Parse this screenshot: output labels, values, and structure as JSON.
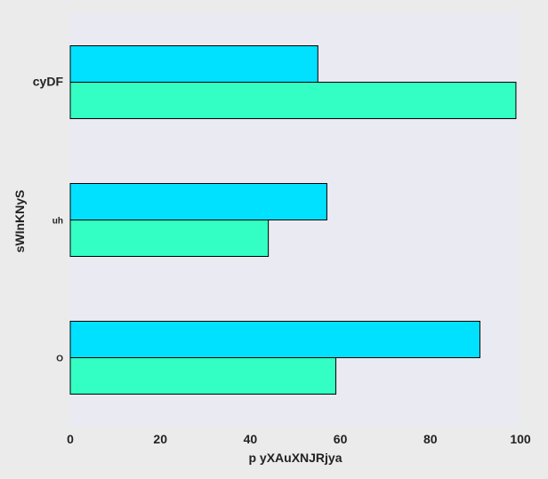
{
  "chart_data": {
    "type": "bar",
    "orientation": "horizontal",
    "title": "",
    "xlabel": "p yXAuXNJRjya",
    "ylabel": "sWInKNyS",
    "categories": [
      "cyDF",
      "uh",
      "O"
    ],
    "series": [
      {
        "color": "#00e0ff",
        "values": [
          55,
          57,
          91
        ]
      },
      {
        "color": "#33ffc4",
        "values": [
          99,
          44,
          59
        ]
      }
    ],
    "xlim": [
      0,
      100
    ],
    "xticks": [
      "0",
      "20",
      "40",
      "60",
      "80",
      "100"
    ],
    "grid": false,
    "legend": "none",
    "colors": {
      "background": "#ebebeb",
      "plot_background": "#eaeaf2",
      "bar_edge": "#000000",
      "text": "#222222"
    }
  }
}
